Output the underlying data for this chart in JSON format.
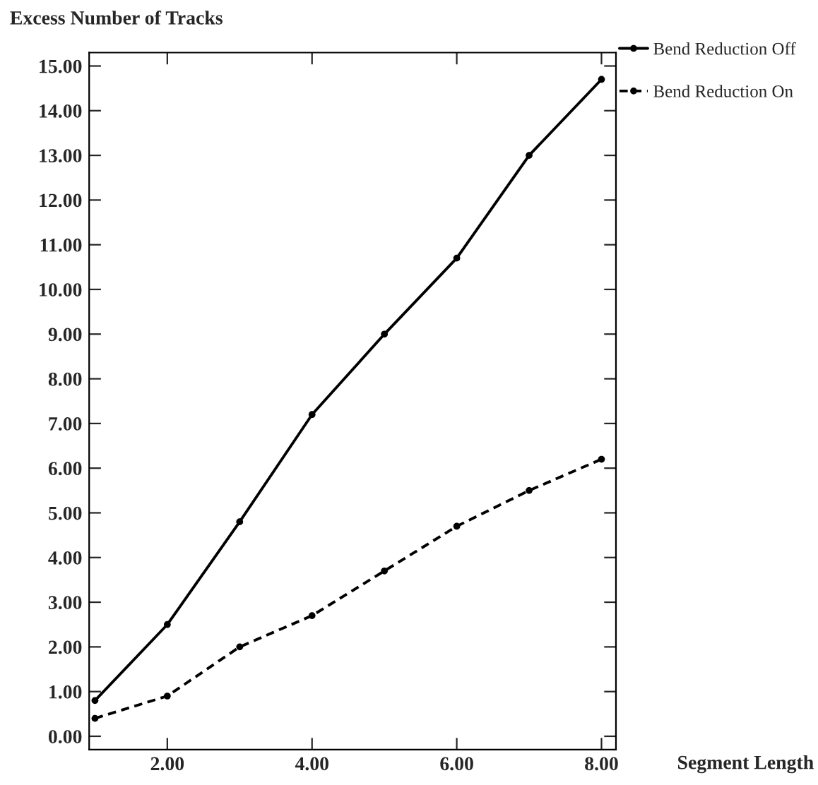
{
  "chart_data": {
    "type": "line",
    "ylabel": "Excess Number of Tracks",
    "xlabel": "Segment Length",
    "x": [
      1,
      2,
      3,
      4,
      5,
      6,
      7,
      8
    ],
    "series": [
      {
        "name": "Bend Reduction Off",
        "color": "#000000",
        "line_style": "solid",
        "values": [
          0.8,
          2.5,
          4.8,
          7.2,
          9.0,
          10.7,
          13.0,
          14.7
        ]
      },
      {
        "name": "Bend Reduction On",
        "color": "#000000",
        "line_style": "dashed",
        "values": [
          0.4,
          0.9,
          2.0,
          2.7,
          3.7,
          4.7,
          5.5,
          6.2
        ]
      }
    ],
    "marker": "circle",
    "legend": "top right",
    "grid": false,
    "xlim": [
      0.92,
      8.2
    ],
    "ylim": [
      -0.3,
      15.3
    ],
    "xticks": [
      {
        "value": 2,
        "label": "2.00"
      },
      {
        "value": 4,
        "label": "4.00"
      },
      {
        "value": 6,
        "label": "6.00"
      },
      {
        "value": 8,
        "label": "8.00"
      }
    ],
    "yticks": [
      {
        "value": 0,
        "label": "0.00"
      },
      {
        "value": 1,
        "label": "1.00"
      },
      {
        "value": 2,
        "label": "2.00"
      },
      {
        "value": 3,
        "label": "3.00"
      },
      {
        "value": 4,
        "label": "4.00"
      },
      {
        "value": 5,
        "label": "5.00"
      },
      {
        "value": 6,
        "label": "6.00"
      },
      {
        "value": 7,
        "label": "7.00"
      },
      {
        "value": 8,
        "label": "8.00"
      },
      {
        "value": 9,
        "label": "9.00"
      },
      {
        "value": 10,
        "label": "10.00"
      },
      {
        "value": 11,
        "label": "11.00"
      },
      {
        "value": 12,
        "label": "12.00"
      },
      {
        "value": 13,
        "label": "13.00"
      },
      {
        "value": 14,
        "label": "14.00"
      },
      {
        "value": 15,
        "label": "15.00"
      }
    ]
  }
}
